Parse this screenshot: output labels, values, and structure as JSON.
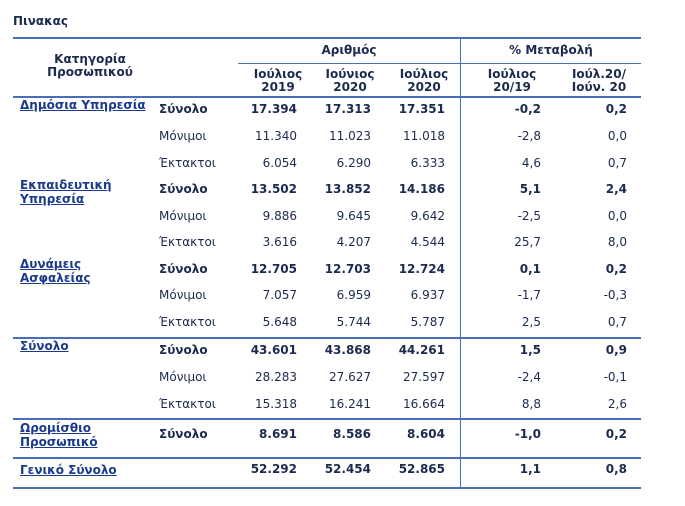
{
  "title": "Πινακας",
  "header": {
    "category_label": "Κατηγορία Προσωπικού",
    "group_count": "Αριθμός",
    "group_change": "% Μεταβολή",
    "col1": [
      "Ιούλιος",
      "2019"
    ],
    "col2": [
      "Ιούνιος",
      "2020"
    ],
    "col3": [
      "Ιούλιος",
      "2020"
    ],
    "col4": [
      "Ιούλιος",
      "20/19"
    ],
    "col5": [
      "Ιούλ.20/",
      "Ιούν. 20"
    ]
  },
  "groups": [
    {
      "category": "Δημόσια Υπηρεσία",
      "rows": [
        {
          "type": "Σύνολο",
          "bold": true,
          "v": [
            "17.394",
            "17.313",
            "17.351",
            "-0,2",
            "0,2"
          ]
        },
        {
          "type": "Μόνιμοι",
          "bold": false,
          "v": [
            "11.340",
            "11.023",
            "11.018",
            "-2,8",
            "0,0"
          ]
        },
        {
          "type": "Έκτακτοι",
          "bold": false,
          "v": [
            "6.054",
            "6.290",
            "6.333",
            "4,6",
            "0,7"
          ]
        }
      ]
    },
    {
      "category": "Εκπαιδευτική Υπηρεσία",
      "rows": [
        {
          "type": "Σύνολο",
          "bold": true,
          "v": [
            "13.502",
            "13.852",
            "14.186",
            "5,1",
            "2,4"
          ]
        },
        {
          "type": "Μόνιμοι",
          "bold": false,
          "v": [
            "9.886",
            "9.645",
            "9.642",
            "-2,5",
            "0,0"
          ]
        },
        {
          "type": "Έκτακτοι",
          "bold": false,
          "v": [
            "3.616",
            "4.207",
            "4.544",
            "25,7",
            "8,0"
          ]
        }
      ]
    },
    {
      "category": "Δυνάμεις Ασφαλείας",
      "rows": [
        {
          "type": "Σύνολο",
          "bold": true,
          "v": [
            "12.705",
            "12.703",
            "12.724",
            "0,1",
            "0,2"
          ]
        },
        {
          "type": "Μόνιμοι",
          "bold": false,
          "v": [
            "7.057",
            "6.959",
            "6.937",
            "-1,7",
            "-0,3"
          ]
        },
        {
          "type": "Έκτακτοι",
          "bold": false,
          "v": [
            "5.648",
            "5.744",
            "5.787",
            "2,5",
            "0,7"
          ]
        }
      ]
    },
    {
      "category": "Σύνολο",
      "rows": [
        {
          "type": "Σύνολο",
          "bold": true,
          "v": [
            "43.601",
            "43.868",
            "44.261",
            "1,5",
            "0,9"
          ]
        },
        {
          "type": "Μόνιμοι",
          "bold": false,
          "v": [
            "28.283",
            "27.627",
            "27.597",
            "-2,4",
            "-0,1"
          ]
        },
        {
          "type": "Έκτακτοι",
          "bold": false,
          "v": [
            "15.318",
            "16.241",
            "16.664",
            "8,8",
            "2,6"
          ]
        }
      ]
    },
    {
      "category": "Ωρομίσθιο Προσωπικό",
      "rows": [
        {
          "type": "Σύνολο",
          "bold": true,
          "v": [
            "8.691",
            "8.586",
            "8.604",
            "-1,0",
            "0,2"
          ]
        }
      ]
    },
    {
      "category": "Γενικό Σύνολο",
      "rows": [
        {
          "type": "",
          "bold": true,
          "v": [
            "52.292",
            "52.454",
            "52.865",
            "1,1",
            "0,8"
          ]
        }
      ]
    }
  ],
  "colors": {
    "accent": "#4a6eb5",
    "text": "#1b2a4e",
    "link": "#1b3a8c"
  }
}
